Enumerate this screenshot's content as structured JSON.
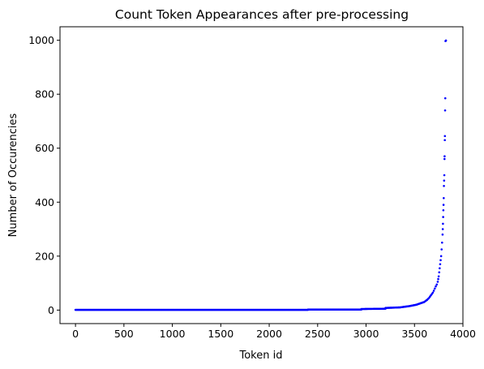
{
  "chart_data": {
    "type": "scatter",
    "title": "Count Token Appearances after pre-processing",
    "xlabel": "Token id",
    "ylabel": "Number of Occurencies",
    "xlim": [
      -160,
      4000
    ],
    "ylim": [
      -50,
      1050
    ],
    "xticks": [
      0,
      500,
      1000,
      1500,
      2000,
      2500,
      3000,
      3500,
      4000
    ],
    "yticks": [
      0,
      200,
      400,
      600,
      800,
      1000
    ],
    "grid": false,
    "marker_color": "#0000ff",
    "series": [
      {
        "points": [
          [
            0,
            1
          ],
          [
            2400,
            1
          ],
          [
            2401,
            2
          ],
          [
            2950,
            2
          ],
          [
            2951,
            4
          ],
          [
            3200,
            5
          ],
          [
            3201,
            8
          ],
          [
            3350,
            10
          ],
          [
            3450,
            15
          ],
          [
            3520,
            20
          ],
          [
            3560,
            25
          ],
          [
            3600,
            30
          ],
          [
            3630,
            38
          ],
          [
            3650,
            45
          ],
          [
            3670,
            55
          ],
          [
            3690,
            65
          ],
          [
            3700,
            72
          ],
          [
            3710,
            80
          ],
          [
            3720,
            88
          ],
          [
            3730,
            95
          ],
          [
            3740,
            105
          ],
          [
            3745,
            115
          ],
          [
            3750,
            125
          ],
          [
            3755,
            140
          ],
          [
            3760,
            155
          ],
          [
            3765,
            170
          ],
          [
            3770,
            185
          ],
          [
            3775,
            200
          ],
          [
            3780,
            225
          ],
          [
            3785,
            250
          ],
          [
            3790,
            280
          ],
          [
            3792,
            300
          ],
          [
            3794,
            320
          ],
          [
            3796,
            345
          ],
          [
            3798,
            370
          ],
          [
            3800,
            390
          ],
          [
            3802,
            415
          ],
          [
            3804,
            460
          ],
          [
            3806,
            480
          ],
          [
            3808,
            500
          ],
          [
            3810,
            560
          ],
          [
            3811,
            570
          ],
          [
            3813,
            630
          ],
          [
            3814,
            645
          ],
          [
            3816,
            740
          ],
          [
            3818,
            785
          ],
          [
            3820,
            997
          ],
          [
            3825,
            999
          ]
        ]
      }
    ]
  }
}
